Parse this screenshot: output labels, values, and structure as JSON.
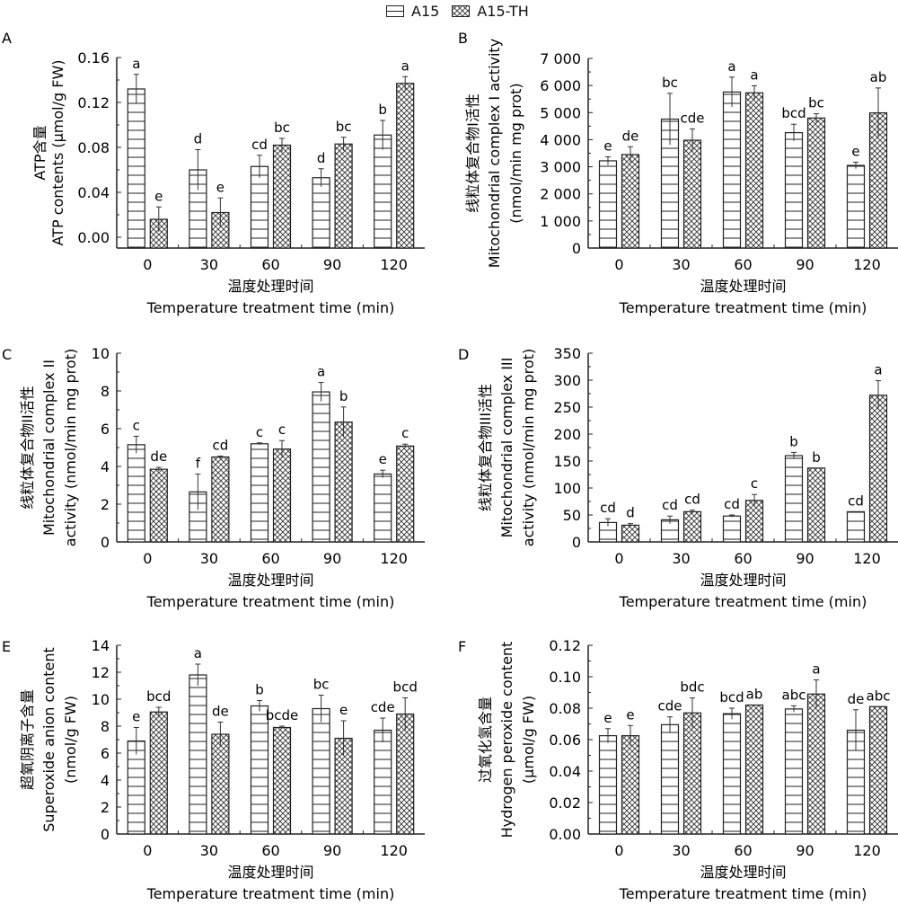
{
  "legend": {
    "items": [
      {
        "label": "A15",
        "pattern": "horizontal-lines"
      },
      {
        "label": "A15-TH",
        "pattern": "crosshatch"
      }
    ]
  },
  "chart_data": [
    {
      "panel": "A",
      "type": "bar",
      "categories": [
        "0",
        "30",
        "60",
        "90",
        "120"
      ],
      "xlabel_cn": "温度处理时间",
      "xlabel": "Temperature treatment time (min)",
      "ylabel_cn": "ATP含量",
      "ylabel": "ATP contents (μmol/g FW)",
      "ylim": [
        0,
        0.16
      ],
      "yticks": [
        "0.00",
        "0.04",
        "0.08",
        "0.12",
        "0.16"
      ],
      "series": [
        {
          "name": "A15",
          "values": [
            0.132,
            0.06,
            0.063,
            0.053,
            0.091
          ],
          "errors": [
            0.013,
            0.018,
            0.01,
            0.008,
            0.013
          ],
          "letters": [
            "a",
            "d",
            "cd",
            "d",
            "b"
          ]
        },
        {
          "name": "A15-TH",
          "values": [
            0.016,
            0.022,
            0.082,
            0.083,
            0.137
          ],
          "errors": [
            0.011,
            0.013,
            0.006,
            0.006,
            0.006
          ],
          "letters": [
            "e",
            "e",
            "bc",
            "bc",
            "a"
          ]
        }
      ]
    },
    {
      "panel": "B",
      "type": "bar",
      "categories": [
        "0",
        "30",
        "60",
        "90",
        "120"
      ],
      "xlabel_cn": "温度处理时间",
      "xlabel": "Temperature treatment time (min)",
      "ylabel_cn": "线粒体复合物I活性",
      "ylabel": "Mitochondrial complex I activity",
      "ylabel2": "(nmol/min mg prot)",
      "ylim": [
        0,
        7000
      ],
      "yticks": [
        "0",
        "1 000",
        "2 000",
        "3 000",
        "4 000",
        "5 000",
        "6 000",
        "7 000"
      ],
      "series": [
        {
          "name": "A15",
          "values": [
            3220,
            4760,
            5760,
            4260,
            3050
          ],
          "errors": [
            150,
            950,
            550,
            310,
            120
          ],
          "letters": [
            "e",
            "bc",
            "a",
            "bcd",
            "e"
          ]
        },
        {
          "name": "A15-TH",
          "values": [
            3450,
            3980,
            5730,
            4800,
            4990
          ],
          "errors": [
            290,
            420,
            260,
            160,
            920
          ],
          "letters": [
            "de",
            "cde",
            "a",
            "bc",
            "ab"
          ]
        }
      ]
    },
    {
      "panel": "C",
      "type": "bar",
      "categories": [
        "0",
        "30",
        "60",
        "90",
        "120"
      ],
      "xlabel_cn": "温度处理时间",
      "xlabel": "Temperature treatment time (min)",
      "ylabel_cn": "线粒体复合物II活性",
      "ylabel": "Mitochondrial complex II",
      "ylabel2": "activity (nmol/min mg prot)",
      "ylim": [
        0,
        10
      ],
      "yticks": [
        "0",
        "2",
        "4",
        "6",
        "8",
        "10"
      ],
      "series": [
        {
          "name": "A15",
          "values": [
            5.15,
            2.65,
            5.2,
            7.95,
            3.6
          ],
          "errors": [
            0.45,
            0.95,
            0.05,
            0.5,
            0.2
          ],
          "letters": [
            "c",
            "f",
            "c",
            "a",
            "e"
          ]
        },
        {
          "name": "A15-TH",
          "values": [
            3.85,
            4.5,
            4.92,
            6.35,
            5.08
          ],
          "errors": [
            0.1,
            0.05,
            0.45,
            0.8,
            0.1
          ],
          "letters": [
            "de",
            "cd",
            "c",
            "b",
            "c"
          ]
        }
      ]
    },
    {
      "panel": "D",
      "type": "bar",
      "categories": [
        "0",
        "30",
        "60",
        "90",
        "120"
      ],
      "xlabel_cn": "温度处理时间",
      "xlabel": "Temperature treatment time (min)",
      "ylabel_cn": "线粒体复合物III活性",
      "ylabel": "Mitochondrial complex III",
      "ylabel2": "activity (nmol/min mg prot)",
      "ylim": [
        0,
        350
      ],
      "yticks": [
        "0",
        "50",
        "100",
        "150",
        "200",
        "250",
        "300",
        "350"
      ],
      "series": [
        {
          "name": "A15",
          "values": [
            36,
            41,
            48,
            160,
            56
          ],
          "errors": [
            7,
            7,
            2,
            6,
            0
          ],
          "letters": [
            "cd",
            "cd",
            "cd",
            "b",
            "cd"
          ]
        },
        {
          "name": "A15-TH",
          "values": [
            31,
            56,
            77,
            137,
            272
          ],
          "errors": [
            3,
            3,
            11,
            0,
            27
          ],
          "letters": [
            "d",
            "cd",
            "c",
            "b",
            "a"
          ]
        }
      ]
    },
    {
      "panel": "E",
      "type": "bar",
      "categories": [
        "0",
        "30",
        "60",
        "90",
        "120"
      ],
      "xlabel_cn": "温度处理时间",
      "xlabel": "Temperature treatment time (min)",
      "ylabel_cn": "超氧阴离子含量",
      "ylabel": "Superoxide anion content",
      "ylabel2": "(nmol/g FW)",
      "ylim": [
        0,
        14
      ],
      "yticks": [
        "0",
        "2",
        "4",
        "6",
        "8",
        "10",
        "12",
        "14"
      ],
      "series": [
        {
          "name": "A15",
          "values": [
            6.9,
            11.8,
            9.5,
            9.3,
            7.7
          ],
          "errors": [
            1.0,
            0.8,
            0.4,
            1.0,
            0.9
          ],
          "letters": [
            "e",
            "a",
            "b",
            "bc",
            "cde"
          ]
        },
        {
          "name": "A15-TH",
          "values": [
            9.05,
            7.4,
            7.9,
            7.1,
            8.9
          ],
          "errors": [
            0.35,
            0.9,
            0.1,
            1.3,
            1.2
          ],
          "letters": [
            "bcd",
            "de",
            "bcde",
            "e",
            "bcd"
          ]
        }
      ]
    },
    {
      "panel": "F",
      "type": "bar",
      "categories": [
        "0",
        "30",
        "60",
        "90",
        "120"
      ],
      "xlabel_cn": "温度处理时间",
      "xlabel": "Temperature treatment time (min)",
      "ylabel_cn": "过氧化氢含量",
      "ylabel": "Hydrogen peroxide content",
      "ylabel2": "(μmol/g FW)",
      "ylim": [
        0,
        0.12
      ],
      "yticks": [
        "0.00",
        "0.02",
        "0.04",
        "0.06",
        "0.08",
        "0.10",
        "0.12"
      ],
      "series": [
        {
          "name": "A15",
          "values": [
            0.0625,
            0.0695,
            0.0765,
            0.0795,
            0.066
          ],
          "errors": [
            0.0045,
            0.005,
            0.0035,
            0.002,
            0.013
          ],
          "letters": [
            "e",
            "cde",
            "bcd",
            "abc",
            "de"
          ]
        },
        {
          "name": "A15-TH",
          "values": [
            0.0625,
            0.077,
            0.082,
            0.089,
            0.081
          ],
          "errors": [
            0.0065,
            0.0095,
            0.0,
            0.009,
            0.0
          ],
          "letters": [
            "e",
            "bdc",
            "ab",
            "a",
            "abc"
          ]
        }
      ]
    }
  ]
}
